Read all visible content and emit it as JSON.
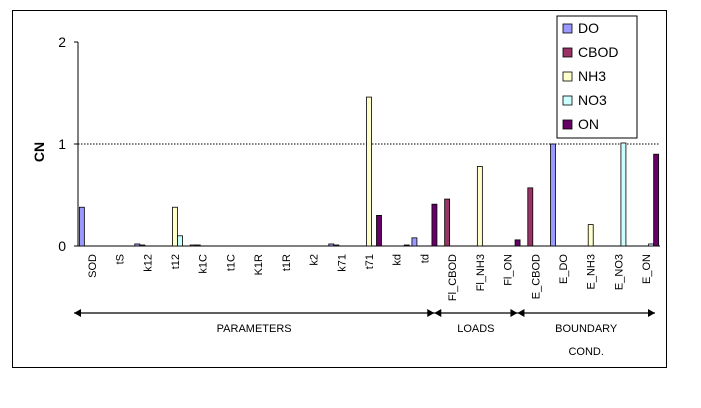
{
  "chart_data": {
    "type": "bar",
    "ylabel": "CN",
    "ylim": [
      0,
      2
    ],
    "yticks": [
      "0",
      "1",
      "2"
    ],
    "reference_line": {
      "y": 1,
      "style": "dotted"
    },
    "categories": [
      "SOD",
      "tS",
      "k12",
      "t12",
      "k1C",
      "t1C",
      "K1R",
      "t1R",
      "k2",
      "k71",
      "t71",
      "kd",
      "td",
      "Fl_CBOD",
      "Fl_NH3",
      "Fl_ON",
      "E_CBOD",
      "E_DO",
      "E_NH3",
      "E_NO3",
      "E_ON"
    ],
    "series": [
      {
        "name": "DO",
        "color": "#9999ff",
        "values": [
          0.38,
          0,
          0.02,
          0,
          0.01,
          0,
          0,
          0,
          0,
          0.02,
          0,
          0,
          0.08,
          0,
          0,
          0,
          0,
          1.0,
          0,
          0,
          0
        ]
      },
      {
        "name": "CBOD",
        "color": "#993366",
        "values": [
          0,
          0,
          0.01,
          0,
          0.01,
          0,
          0,
          0,
          0,
          0.01,
          0,
          0,
          0,
          0.46,
          0,
          0,
          0.57,
          0,
          0,
          0,
          0
        ]
      },
      {
        "name": "NH3",
        "color": "#ffffcc",
        "values": [
          0,
          0,
          0,
          0.38,
          0,
          0,
          0,
          0,
          0,
          0,
          1.46,
          0,
          0,
          0,
          0.78,
          0,
          0,
          0,
          0.21,
          0,
          0
        ]
      },
      {
        "name": " NO3",
        "color": "#ccffff",
        "values": [
          0,
          0,
          0,
          0.1,
          0,
          0,
          0,
          0,
          0,
          0,
          0,
          0,
          0,
          0,
          0,
          0,
          0,
          0,
          0,
          1.01,
          0.02
        ]
      },
      {
        "name": "ON",
        "color": "#660066",
        "values": [
          0,
          0,
          0,
          0,
          0,
          0,
          0,
          0,
          0,
          0,
          0.3,
          0.01,
          0.41,
          0,
          0,
          0.06,
          0,
          0,
          0,
          0,
          0.9
        ]
      }
    ],
    "groups": [
      {
        "label": "PARAMETERS",
        "from": 0,
        "to": 12
      },
      {
        "label": "LOADS",
        "from": 13,
        "to": 15
      },
      {
        "label": "BOUNDARY",
        "label2": "COND.",
        "from": 16,
        "to": 20
      }
    ],
    "legend_position": "top-right"
  }
}
